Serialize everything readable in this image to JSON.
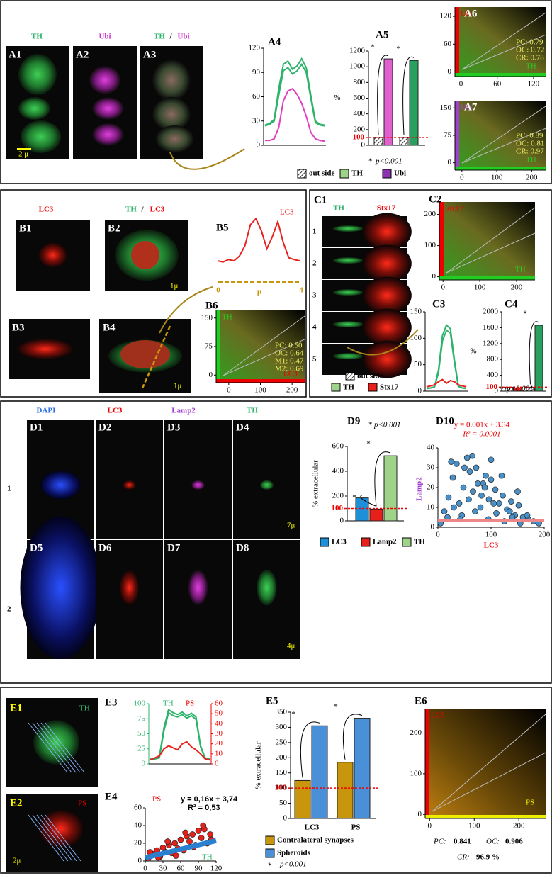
{
  "A": {
    "labels": [
      "A1",
      "A2",
      "A3",
      "A4",
      "A5",
      "A6",
      "A7"
    ],
    "img_titles": [
      "TH",
      "Ubi",
      "TH",
      "/",
      "Ubi"
    ],
    "scale": "2 μ",
    "A4": {
      "type": "line",
      "ylim": [
        0,
        120
      ],
      "yticks": [
        0,
        30,
        60,
        90,
        120
      ],
      "series": [
        {
          "color": "#2db36b",
          "values": [
            25,
            27,
            32,
            70,
            100,
            104,
            94,
            98,
            107,
            96,
            62,
            30,
            26,
            25
          ]
        },
        {
          "color": "#2db36b",
          "values": [
            24,
            26,
            30,
            62,
            92,
            96,
            88,
            92,
            100,
            90,
            58,
            28,
            25,
            24
          ]
        },
        {
          "color": "#e040c0",
          "values": [
            6,
            6,
            8,
            22,
            55,
            67,
            70,
            63,
            52,
            36,
            16,
            8,
            6,
            5
          ]
        }
      ]
    },
    "A5": {
      "type": "bar",
      "ylabel": "%",
      "ylim": [
        0,
        1200
      ],
      "yticks": [
        0,
        200,
        400,
        600,
        800,
        1000,
        1200
      ],
      "values": [
        100,
        1100,
        100,
        1080
      ],
      "colors": [
        "#ffffff",
        "#e060d0",
        "#ffffff",
        "#2aa060"
      ],
      "reference": {
        "value": 100,
        "label": "100"
      },
      "annotations": [
        "*",
        "*"
      ],
      "note": [
        "*",
        "p<0.001"
      ],
      "legend": [
        "out side",
        "TH",
        "Ubi"
      ]
    },
    "A6": {
      "y_label": "Ubi",
      "x_label": "TH",
      "xlim": [
        -10,
        140
      ],
      "ylim": [
        -10,
        140
      ],
      "xticks": [
        0,
        60,
        120
      ],
      "yticks": [
        0,
        60,
        120
      ],
      "stats": [
        "PC: 0.79",
        "OC: 0.72",
        "CR: 0.78"
      ]
    },
    "A7": {
      "y_label": "Ubi",
      "x_label": "TH",
      "xlim": [
        -20,
        240
      ],
      "ylim": [
        -20,
        170
      ],
      "xticks": [
        0,
        100,
        200
      ],
      "yticks": [
        0,
        75,
        150
      ],
      "stats": [
        "PC: 0.89",
        "OC: 0.81",
        "CR: 0.97"
      ]
    }
  },
  "B": {
    "labels": [
      "B1",
      "B2",
      "B3",
      "B4",
      "B5",
      "B6"
    ],
    "img_titles": [
      "LC3",
      "TH",
      "/",
      "LC3"
    ],
    "scales": [
      "1μ",
      "1μ"
    ],
    "B5": {
      "type": "line",
      "title": "LC3",
      "x_label": "μ",
      "xticks": [
        0,
        4
      ],
      "ylim": [
        0,
        100
      ],
      "series": [
        {
          "color": "#e8201c",
          "values": [
            20,
            18,
            22,
            20,
            28,
            45,
            80,
            90,
            70,
            40,
            60,
            85,
            50,
            25,
            22,
            20
          ]
        }
      ]
    },
    "B6": {
      "y_label": "TH",
      "x_label": "LC3",
      "xlim": [
        -40,
        240
      ],
      "ylim": [
        -20,
        170
      ],
      "xticks": [
        0,
        100,
        200
      ],
      "yticks": [
        0,
        75,
        150
      ],
      "stats": [
        "PC: 0.50",
        "OC: 0.64",
        "M1: 0.47",
        "M2: 0.69"
      ]
    }
  },
  "C": {
    "labels": [
      "C1",
      "C2",
      "C3",
      "C4"
    ],
    "img_titles": [
      "TH",
      "Stx17"
    ],
    "rows": [
      "1",
      "2",
      "3",
      "4",
      "5"
    ],
    "C2": {
      "y_label": "Stx17",
      "x_label": "TH",
      "xlim": [
        -10,
        250
      ],
      "ylim": [
        -10,
        240
      ],
      "xticks": [
        0,
        100,
        200
      ],
      "yticks": [
        0,
        100,
        200
      ]
    },
    "C3": {
      "type": "line",
      "ylim": [
        0,
        150
      ],
      "yticks": [
        0,
        50,
        100,
        150
      ],
      "series": [
        {
          "color": "#2db36b",
          "values": [
            5,
            6,
            8,
            40,
            105,
            125,
            118,
            60,
            10,
            6,
            5
          ]
        },
        {
          "color": "#2db36b",
          "values": [
            5,
            6,
            8,
            35,
            95,
            115,
            110,
            55,
            9,
            6,
            5
          ]
        },
        {
          "color": "#e8201c",
          "values": [
            8,
            10,
            12,
            18,
            22,
            15,
            20,
            18,
            12,
            10,
            8
          ]
        }
      ]
    },
    "C4": {
      "type": "bar",
      "ylabel": "%",
      "ylim": [
        0,
        2000
      ],
      "yticks": [
        0,
        400,
        800,
        1200,
        1600,
        2000
      ],
      "values": [
        100,
        80,
        100,
        1660
      ],
      "colors": [
        "#ffffff",
        "#e8201c",
        "#ffffff",
        "#2aa060"
      ],
      "reference": {
        "value": 100,
        "label": "100"
      },
      "annotations": [
        "*"
      ],
      "note": [
        "*",
        "p<0.001"
      ],
      "legend": [
        "out side",
        "TH",
        "Stx17"
      ]
    }
  },
  "D": {
    "headers": [
      "DAPI",
      "LC3",
      "Lamp2",
      "TH"
    ],
    "labels": [
      "D1",
      "D2",
      "D3",
      "D4",
      "D5",
      "D6",
      "D7",
      "D8",
      "D9",
      "D10"
    ],
    "rows": [
      "1",
      "2"
    ],
    "scales": [
      "7μ",
      "4μ"
    ],
    "D9": {
      "type": "bar",
      "ylabel": "% extracellular",
      "ylim": [
        0,
        600
      ],
      "yticks": [
        0,
        200,
        400,
        600
      ],
      "values": [
        185,
        95,
        525
      ],
      "colors": [
        "#1e90d8",
        "#e8201c",
        "#9fd38a"
      ],
      "reference": {
        "value": 100,
        "label": "100"
      },
      "annotations": [
        "*",
        "*"
      ],
      "note": [
        "*",
        "p<0.001"
      ],
      "legend": [
        "LC3",
        "Lamp2",
        "TH"
      ]
    },
    "D10": {
      "type": "scatter",
      "equation": "y = 0.001x + 3.34",
      "r2": "R² = 0.0001",
      "y_label": "Lamp2",
      "x_label": "LC3",
      "xlim": [
        0,
        200
      ],
      "ylim": [
        0,
        40
      ],
      "xticks": [
        0,
        100,
        200
      ],
      "yticks": [
        0,
        10,
        20,
        30,
        40
      ],
      "x": [
        5,
        12,
        20,
        28,
        35,
        40,
        48,
        55,
        60,
        66,
        72,
        80,
        85,
        90,
        96,
        100,
        108,
        115,
        122,
        130,
        138,
        145,
        152,
        160,
        170,
        180,
        190,
        18,
        30,
        45,
        58,
        70,
        82,
        95,
        110,
        125,
        140,
        155,
        25,
        50,
        75,
        100,
        120,
        150,
        65,
        88,
        42,
        105,
        135,
        168
      ],
      "y": [
        2,
        8,
        15,
        25,
        32,
        12,
        20,
        35,
        28,
        18,
        30,
        10,
        22,
        26,
        14,
        24,
        19,
        12,
        16,
        9,
        13,
        6,
        11,
        5,
        4,
        3,
        2,
        5,
        10,
        6,
        14,
        8,
        16,
        4,
        7,
        3,
        5,
        2,
        33,
        30,
        22,
        34,
        26,
        18,
        36,
        20,
        4,
        12,
        8,
        6
      ]
    }
  },
  "E": {
    "labels": [
      "E1",
      "E2",
      "E3",
      "E4",
      "E5",
      "E6"
    ],
    "img_titles": [
      "TH",
      "PS"
    ],
    "scale": "2μ",
    "E3": {
      "type": "line",
      "y_label": "TH",
      "y2_label": "PS",
      "ylim": [
        0,
        100
      ],
      "yticks": [
        0,
        25,
        50,
        75,
        100
      ],
      "y2lim": [
        0,
        60
      ],
      "y2ticks": [
        0,
        10,
        20,
        30,
        40,
        50,
        60
      ],
      "series": [
        {
          "color": "#2db36b",
          "values": [
            8,
            9,
            12,
            60,
            90,
            85,
            82,
            86,
            80,
            84,
            78,
            30,
            10,
            8
          ]
        },
        {
          "color": "#2db36b",
          "values": [
            7,
            8,
            10,
            55,
            85,
            80,
            78,
            82,
            76,
            80,
            74,
            28,
            9,
            7
          ]
        },
        {
          "color": "#e8201c",
          "axis": "y2",
          "values": [
            4,
            6,
            8,
            15,
            18,
            16,
            14,
            20,
            22,
            17,
            14,
            10,
            5,
            4
          ]
        }
      ]
    },
    "E4": {
      "type": "scatter",
      "y_label": "PS",
      "x_label": "TH",
      "equation": "y = 0,16x + 3,74",
      "r2": "R² = 0,53",
      "xlim": [
        0,
        120
      ],
      "ylim": [
        0,
        60
      ],
      "xticks": [
        0,
        30,
        60,
        90,
        120
      ],
      "yticks": [
        0,
        20,
        40,
        60
      ],
      "x": [
        5,
        10,
        15,
        20,
        25,
        30,
        35,
        40,
        45,
        50,
        55,
        60,
        65,
        70,
        75,
        80,
        85,
        90,
        95,
        100,
        105,
        110,
        8,
        22,
        38,
        52,
        68,
        82,
        98,
        112
      ],
      "y": [
        3,
        6,
        8,
        12,
        5,
        15,
        10,
        18,
        9,
        20,
        14,
        24,
        12,
        28,
        22,
        30,
        18,
        34,
        26,
        36,
        20,
        30,
        10,
        4,
        22,
        6,
        32,
        16,
        40,
        24
      ]
    },
    "E5": {
      "type": "bar",
      "ylabel": "% extracellular",
      "categories": [
        "LC3",
        "PS"
      ],
      "ylim": [
        0,
        350
      ],
      "yticks": [
        0,
        50,
        100,
        150,
        200,
        250,
        300,
        350
      ],
      "values": [
        125,
        305,
        185,
        330
      ],
      "colors": [
        "#c8960c",
        "#4a90d9",
        "#c8960c",
        "#4a90d9"
      ],
      "reference": {
        "value": 100,
        "label": "100"
      },
      "annotations": [
        "*",
        "*"
      ],
      "legend": [
        "Contralateral synapses",
        "Spheroids"
      ],
      "note": [
        "*",
        "p<0.001"
      ]
    },
    "E6": {
      "y_label": "LC3",
      "x_label": "PS",
      "xlim": [
        -10,
        260
      ],
      "ylim": [
        -10,
        260
      ],
      "xticks": [
        0,
        100,
        200
      ],
      "yticks": [
        0,
        100,
        200
      ],
      "stats": [
        "PC:",
        "0.841",
        "OC:",
        "0.906",
        "CR:",
        "96.9 %"
      ]
    }
  }
}
